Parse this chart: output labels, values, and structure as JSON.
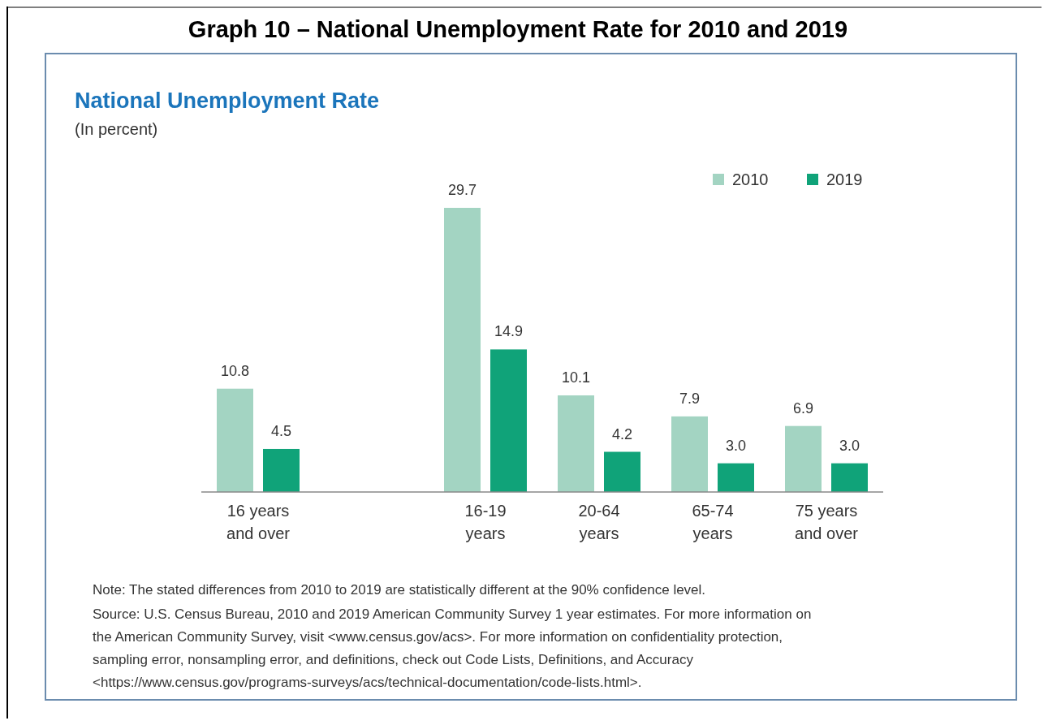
{
  "chart_data": {
    "type": "bar",
    "title": "Graph 10 – National Unemployment Rate for 2010 and 2019",
    "subtitle": "National Unemployment Rate",
    "categories": [
      "16 years and over",
      null,
      "16-19 years",
      "20-64 years",
      "65-74 years",
      "75 years and over"
    ],
    "series": [
      {
        "name": "2010",
        "color": "#a3d4c2",
        "values": [
          10.8,
          null,
          29.7,
          10.1,
          7.9,
          6.9
        ],
        "value_labels": [
          "10.8",
          null,
          "29.7",
          "10.1",
          "7.9",
          "6.9"
        ]
      },
      {
        "name": "2019",
        "color": "#10a379",
        "values": [
          4.5,
          null,
          14.9,
          4.2,
          3.0,
          3.0
        ],
        "value_labels": [
          "4.5",
          null,
          "14.9",
          "4.2",
          "3.0",
          "3.0"
        ]
      }
    ],
    "legend": "top right",
    "annotations": [
      "(In percent)",
      "Note: The stated differences from 2010 to 2019 are statistically different at the 90% confidence level.",
      "Source: U.S. Census Bureau, 2010 and 2019 American Community Survey 1 year estimates. For more information on the American Community Survey, visit <www.census.gov/acs>. For more information on confidentiality protection, sampling error, nonsampling error, and definitions, check out Code Lists, Definitions, and Accuracy <https://www.census.gov/programs-surveys/acs/technical-documentation/code-lists.html>."
    ]
  }
}
